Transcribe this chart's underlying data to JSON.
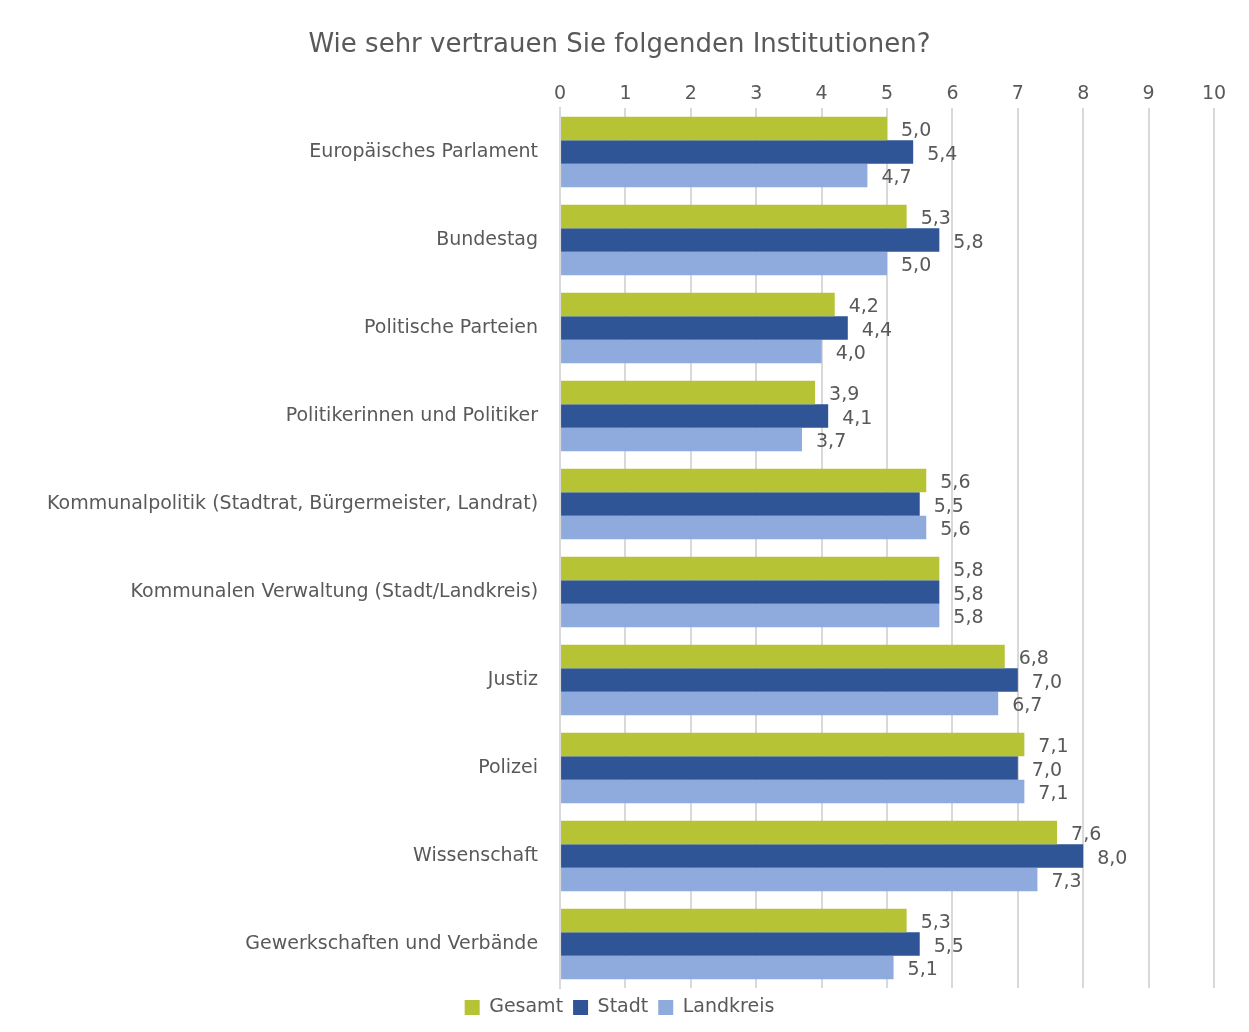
{
  "chart_data": {
    "type": "bar",
    "orientation": "horizontal",
    "title": "Wie sehr vertrauen Sie folgenden Institutionen?",
    "categories": [
      "Europäisches Parlament",
      "Bundestag",
      "Politische Parteien",
      "Politikerinnen und Politiker",
      "Kommunalpolitik (Stadtrat, Bürgermeister, Landrat)",
      "Kommunalen Verwaltung (Stadt/Landkreis)",
      "Justiz",
      "Polizei",
      "Wissenschaft",
      "Gewerkschaften und Verbände"
    ],
    "series": [
      {
        "name": "Gesamt",
        "color": "#b5c334",
        "values": [
          5.0,
          5.3,
          4.2,
          3.9,
          5.6,
          5.8,
          6.8,
          7.1,
          7.6,
          5.3
        ],
        "value_labels": [
          "5,0",
          "5,3",
          "4,2",
          "3,9",
          "5,6",
          "5,8",
          "6,8",
          "7,1",
          "7,6",
          "5,3"
        ]
      },
      {
        "name": "Stadt",
        "color": "#2f5597",
        "values": [
          5.4,
          5.8,
          4.4,
          4.1,
          5.5,
          5.8,
          7.0,
          7.0,
          8.0,
          5.5
        ],
        "value_labels": [
          "5,4",
          "5,8",
          "4,4",
          "4,1",
          "5,5",
          "5,8",
          "7,0",
          "7,0",
          "8,0",
          "5,5"
        ]
      },
      {
        "name": "Landkreis",
        "color": "#8faadc",
        "values": [
          4.7,
          5.0,
          4.0,
          3.7,
          5.6,
          5.8,
          6.7,
          7.1,
          7.3,
          5.1
        ],
        "value_labels": [
          "4,7",
          "5,0",
          "4,0",
          "3,7",
          "5,6",
          "5,8",
          "6,7",
          "7,1",
          "7,3",
          "5,1"
        ]
      }
    ],
    "xlim": [
      0,
      10
    ],
    "xticks": [
      0,
      1,
      2,
      3,
      4,
      5,
      6,
      7,
      8,
      9,
      10
    ],
    "grid": "x",
    "legend": "bottom"
  }
}
